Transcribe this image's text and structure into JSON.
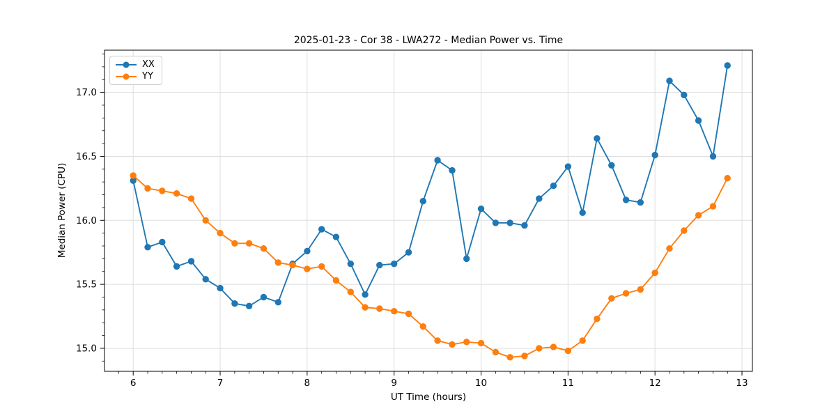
{
  "chart_data": {
    "type": "line",
    "title": "2025-01-23 - Cor 38 - LWA272 - Median Power vs. Time",
    "xlabel": "UT Time (hours)",
    "ylabel": "Median Power (CPU)",
    "xlim": [
      5.67,
      13.12
    ],
    "ylim": [
      14.82,
      17.33
    ],
    "xticks": [
      6,
      7,
      8,
      9,
      10,
      11,
      12,
      13
    ],
    "yticks": [
      15.0,
      15.5,
      16.0,
      16.5,
      17.0
    ],
    "x_minor_step": 0.16667,
    "y_minor_step": 0.1,
    "grid": "major",
    "legend_position": "upper-left",
    "x": [
      6.0,
      6.167,
      6.333,
      6.5,
      6.667,
      6.833,
      7.0,
      7.167,
      7.333,
      7.5,
      7.667,
      7.833,
      8.0,
      8.167,
      8.333,
      8.5,
      8.667,
      8.833,
      9.0,
      9.167,
      9.333,
      9.5,
      9.667,
      9.833,
      10.0,
      10.167,
      10.333,
      10.5,
      10.667,
      10.833,
      11.0,
      11.167,
      11.333,
      11.5,
      11.667,
      11.833,
      12.0,
      12.167,
      12.333,
      12.5,
      12.667,
      12.833
    ],
    "series": [
      {
        "name": "XX",
        "color": "#1f77b4",
        "values": [
          16.31,
          15.79,
          15.83,
          15.64,
          15.68,
          15.54,
          15.47,
          15.35,
          15.33,
          15.4,
          15.36,
          15.66,
          15.76,
          15.93,
          15.87,
          15.66,
          15.42,
          15.65,
          15.66,
          15.75,
          16.15,
          16.47,
          16.39,
          15.7,
          16.09,
          15.98,
          15.98,
          15.96,
          16.17,
          16.27,
          16.42,
          16.06,
          16.64,
          16.43,
          16.16,
          16.14,
          16.51,
          17.09,
          16.98,
          16.78,
          16.5,
          17.21
        ]
      },
      {
        "name": "YY",
        "color": "#ff7f0e",
        "values": [
          16.35,
          16.25,
          16.23,
          16.21,
          16.17,
          16.0,
          15.9,
          15.82,
          15.82,
          15.78,
          15.67,
          15.65,
          15.62,
          15.64,
          15.53,
          15.44,
          15.32,
          15.31,
          15.29,
          15.27,
          15.17,
          15.06,
          15.03,
          15.05,
          15.04,
          14.97,
          14.93,
          14.94,
          15.0,
          15.01,
          14.98,
          15.06,
          15.23,
          15.39,
          15.43,
          15.46,
          15.59,
          15.78,
          15.92,
          16.04,
          16.11,
          16.33
        ]
      }
    ]
  },
  "style": {
    "grid_color": "#dedede",
    "spine_color": "#000000",
    "tick_color": "#000000",
    "background": "#ffffff"
  }
}
